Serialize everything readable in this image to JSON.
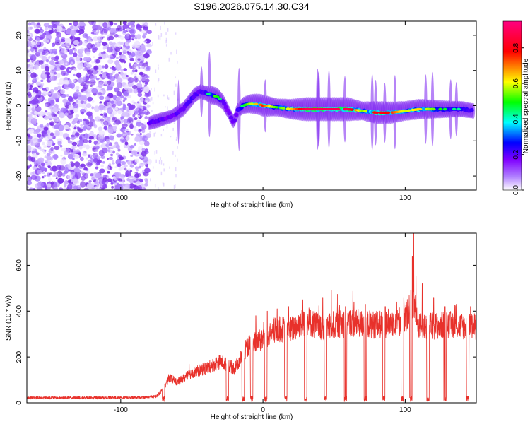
{
  "chart_data": [
    {
      "type": "heatmap",
      "title": "S196.2026.075.14.30.C34",
      "xlabel": "Height of straight line (km)",
      "ylabel": "Frequency (Hz)",
      "xlim": [
        -166,
        150
      ],
      "ylim": [
        -24,
        24
      ],
      "x_ticks": [
        -100,
        0,
        100
      ],
      "x_tick_labels": [
        "-100",
        "0",
        "100"
      ],
      "y_ticks": [
        -20,
        -10,
        0,
        10,
        20
      ],
      "y_tick_labels": [
        "-20",
        "-10",
        "0",
        "10",
        "20"
      ],
      "colorbar": {
        "label": "Normalized spectral amplitude",
        "range": [
          0,
          0.95
        ],
        "ticks": [
          0,
          0.2,
          0.4,
          0.6,
          0.8
        ],
        "tick_labels": [
          "0.0",
          "0.2",
          "0.4",
          "0.6",
          "0.8"
        ],
        "colormap": [
          "#ffffff",
          "#8000ff",
          "#0000ff",
          "#00ffff",
          "#00ff00",
          "#ffff00",
          "#ff0000",
          "#ff0080"
        ]
      },
      "noise_region_x": [
        -166,
        -80
      ],
      "ridge": {
        "x": [
          -80,
          -76,
          -72,
          -68,
          -64,
          -60,
          -56,
          -52,
          -48,
          -44,
          -40,
          -36,
          -32,
          -28,
          -24,
          -21,
          -20,
          -18,
          -14,
          -10,
          -6,
          -2,
          0,
          10,
          20,
          30,
          40,
          50,
          60,
          70,
          80,
          90,
          100,
          110,
          120,
          130,
          140,
          148
        ],
        "freq": [
          -5,
          -4.5,
          -4,
          -3.5,
          -3,
          -2,
          -1,
          1,
          3,
          4,
          3.5,
          3,
          2.5,
          1,
          -2,
          -4.5,
          -4,
          -1.5,
          0,
          0.5,
          0.5,
          0.3,
          0,
          -0.5,
          -1,
          -1,
          -1,
          -1,
          -1,
          -1.5,
          -2,
          -2,
          -1.5,
          -1,
          -1,
          -1,
          -1,
          -1.5
        ],
        "amplitude": [
          0.3,
          0.35,
          0.35,
          0.3,
          0.3,
          0.35,
          0.35,
          0.4,
          0.4,
          0.35,
          0.4,
          0.6,
          0.55,
          0.4,
          0.3,
          0.3,
          0.3,
          0.35,
          0.5,
          0.6,
          0.7,
          0.75,
          0.8,
          0.55,
          0.7,
          0.9,
          0.9,
          0.9,
          0.9,
          0.6,
          0.85,
          0.8,
          0.65,
          0.7,
          0.6,
          0.5,
          0.45,
          0.4
        ]
      }
    },
    {
      "type": "line",
      "xlabel": "Height of straight line (km)",
      "ylabel": "SNR (10 * v/v)",
      "xlim": [
        -166,
        150
      ],
      "ylim": [
        0,
        740
      ],
      "x_ticks": [
        -100,
        0,
        100
      ],
      "x_tick_labels": [
        "-100",
        "0",
        "100"
      ],
      "y_ticks": [
        0,
        200,
        400,
        600
      ],
      "y_tick_labels": [
        "0",
        "200",
        "400",
        "600"
      ],
      "color": "#e8312b",
      "baseline": {
        "x": [
          -166,
          -140,
          -110,
          -85,
          -75,
          -70,
          -66,
          -60,
          -50,
          -40,
          -30,
          -20,
          -10,
          0,
          10,
          20,
          30,
          40,
          60,
          80,
          100,
          105,
          110,
          130,
          150
        ],
        "snr": [
          22,
          22,
          22,
          23,
          28,
          60,
          110,
          90,
          130,
          150,
          180,
          150,
          250,
          280,
          320,
          320,
          360,
          330,
          350,
          340,
          360,
          450,
          330,
          340,
          330
        ]
      },
      "dropouts_x": [
        -70,
        -25,
        -14,
        -8,
        2,
        16,
        30,
        44,
        58,
        72,
        85,
        98,
        104,
        116,
        128,
        144
      ],
      "spikes": {
        "x": [
          -5,
          3,
          10,
          18,
          28,
          36,
          42,
          48,
          58,
          64,
          72,
          80,
          86,
          94,
          99,
          104,
          105,
          106,
          112,
          120,
          128,
          136,
          146
        ],
        "snr": [
          380,
          400,
          410,
          420,
          450,
          400,
          460,
          490,
          420,
          440,
          430,
          400,
          420,
          440,
          460,
          490,
          640,
          740,
          520,
          460,
          420,
          430,
          420
        ]
      }
    }
  ]
}
